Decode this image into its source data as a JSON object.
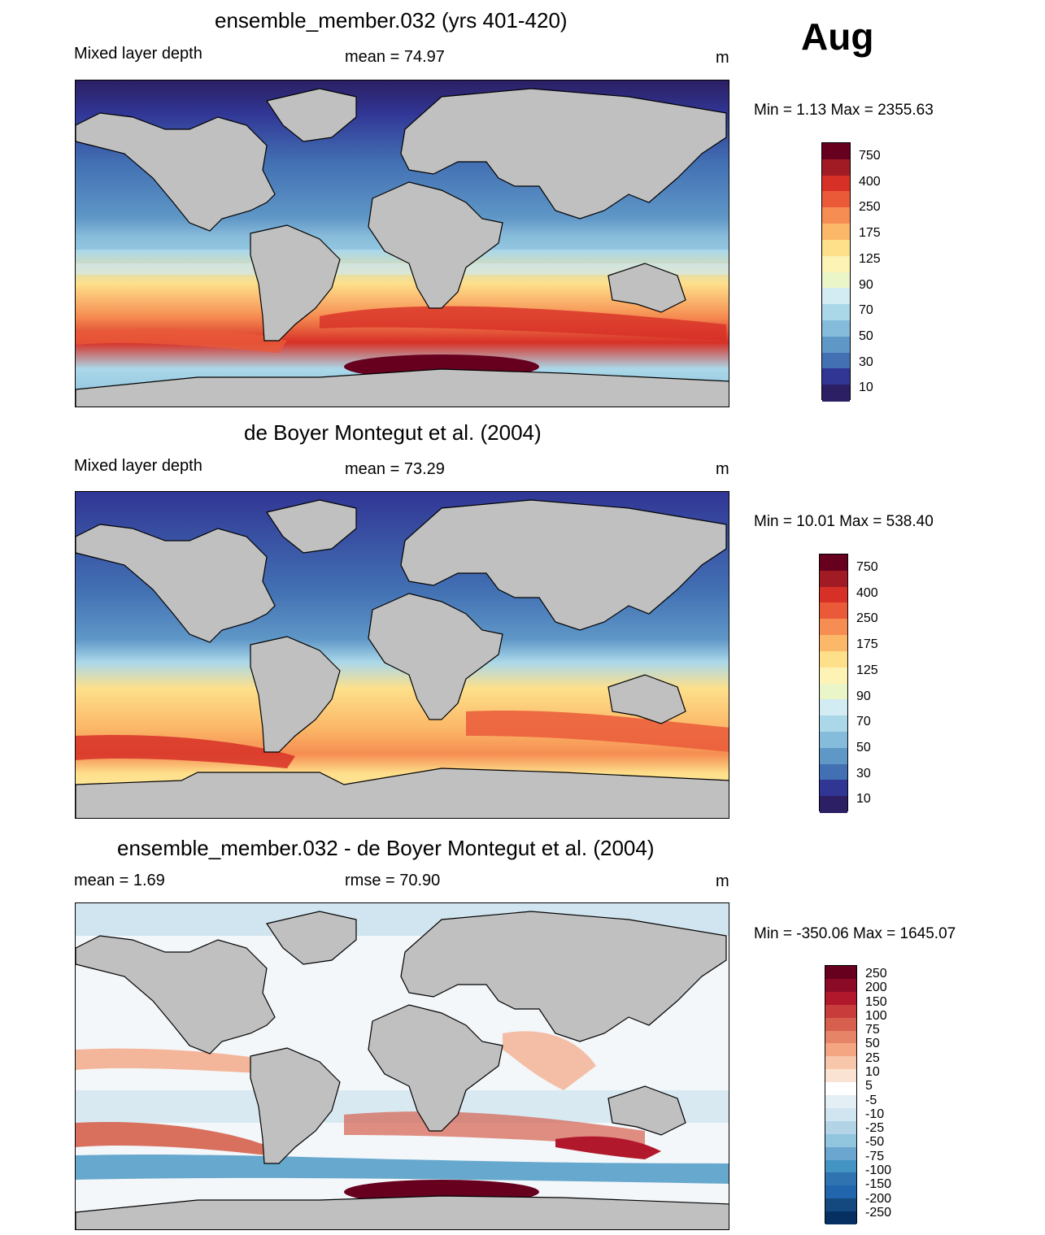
{
  "month": "Aug",
  "panels": [
    {
      "id": "model",
      "title": "ensemble_member.032 (yrs 401-420)",
      "left_label": "Mixed layer depth",
      "center_label": "mean =  74.97",
      "units": "m",
      "minmax": "Min =    1.13 Max = 2355.63",
      "colorbar": [
        "750",
        "400",
        "250",
        "175",
        "125",
        "90",
        "70",
        "50",
        "30",
        "10"
      ],
      "colorbar_colors": [
        "#67001f",
        "#a11b24",
        "#d73027",
        "#ea5a39",
        "#f68d52",
        "#fbb868",
        "#fee08b",
        "#fdf3b4",
        "#eaf5c8",
        "#d3ebf2",
        "#abd8e9",
        "#86bcdb",
        "#5f97c7",
        "#4270b3",
        "#313695",
        "#2c1f63"
      ]
    },
    {
      "id": "obs",
      "title": "de Boyer Montegut et al. (2004)",
      "left_label": "Mixed layer depth",
      "center_label": "mean =  73.29",
      "units": "m",
      "minmax": "Min =  10.01 Max = 538.40",
      "colorbar": [
        "750",
        "400",
        "250",
        "175",
        "125",
        "90",
        "70",
        "50",
        "30",
        "10"
      ],
      "colorbar_colors": [
        "#67001f",
        "#a11b24",
        "#d73027",
        "#ea5a39",
        "#f68d52",
        "#fbb868",
        "#fee08b",
        "#fdf3b4",
        "#eaf5c8",
        "#d3ebf2",
        "#abd8e9",
        "#86bcdb",
        "#5f97c7",
        "#4270b3",
        "#313695",
        "#2c1f63"
      ]
    },
    {
      "id": "diff",
      "title": "ensemble_member.032 - de Boyer Montegut et al. (2004)",
      "left_label": "mean =   1.69",
      "center_label": "rmse =  70.90",
      "units": "m",
      "minmax": "Min = -350.06 Max = 1645.07",
      "colorbar": [
        "250",
        "200",
        "150",
        "100",
        "75",
        "50",
        "25",
        "10",
        "5",
        "-5",
        "-10",
        "-25",
        "-50",
        "-75",
        "-100",
        "-150",
        "-200",
        "-250"
      ],
      "colorbar_colors": [
        "#67001f",
        "#8b0a26",
        "#b2182b",
        "#c93c3c",
        "#d6604d",
        "#e68467",
        "#f4a582",
        "#f8c6ab",
        "#fbe3d3",
        "#ffffff",
        "#e4eef5",
        "#d1e5f0",
        "#b3d4e7",
        "#92c5de",
        "#6aa6cf",
        "#4393c3",
        "#2f73b0",
        "#2166ac",
        "#14497f",
        "#053061"
      ]
    }
  ]
}
